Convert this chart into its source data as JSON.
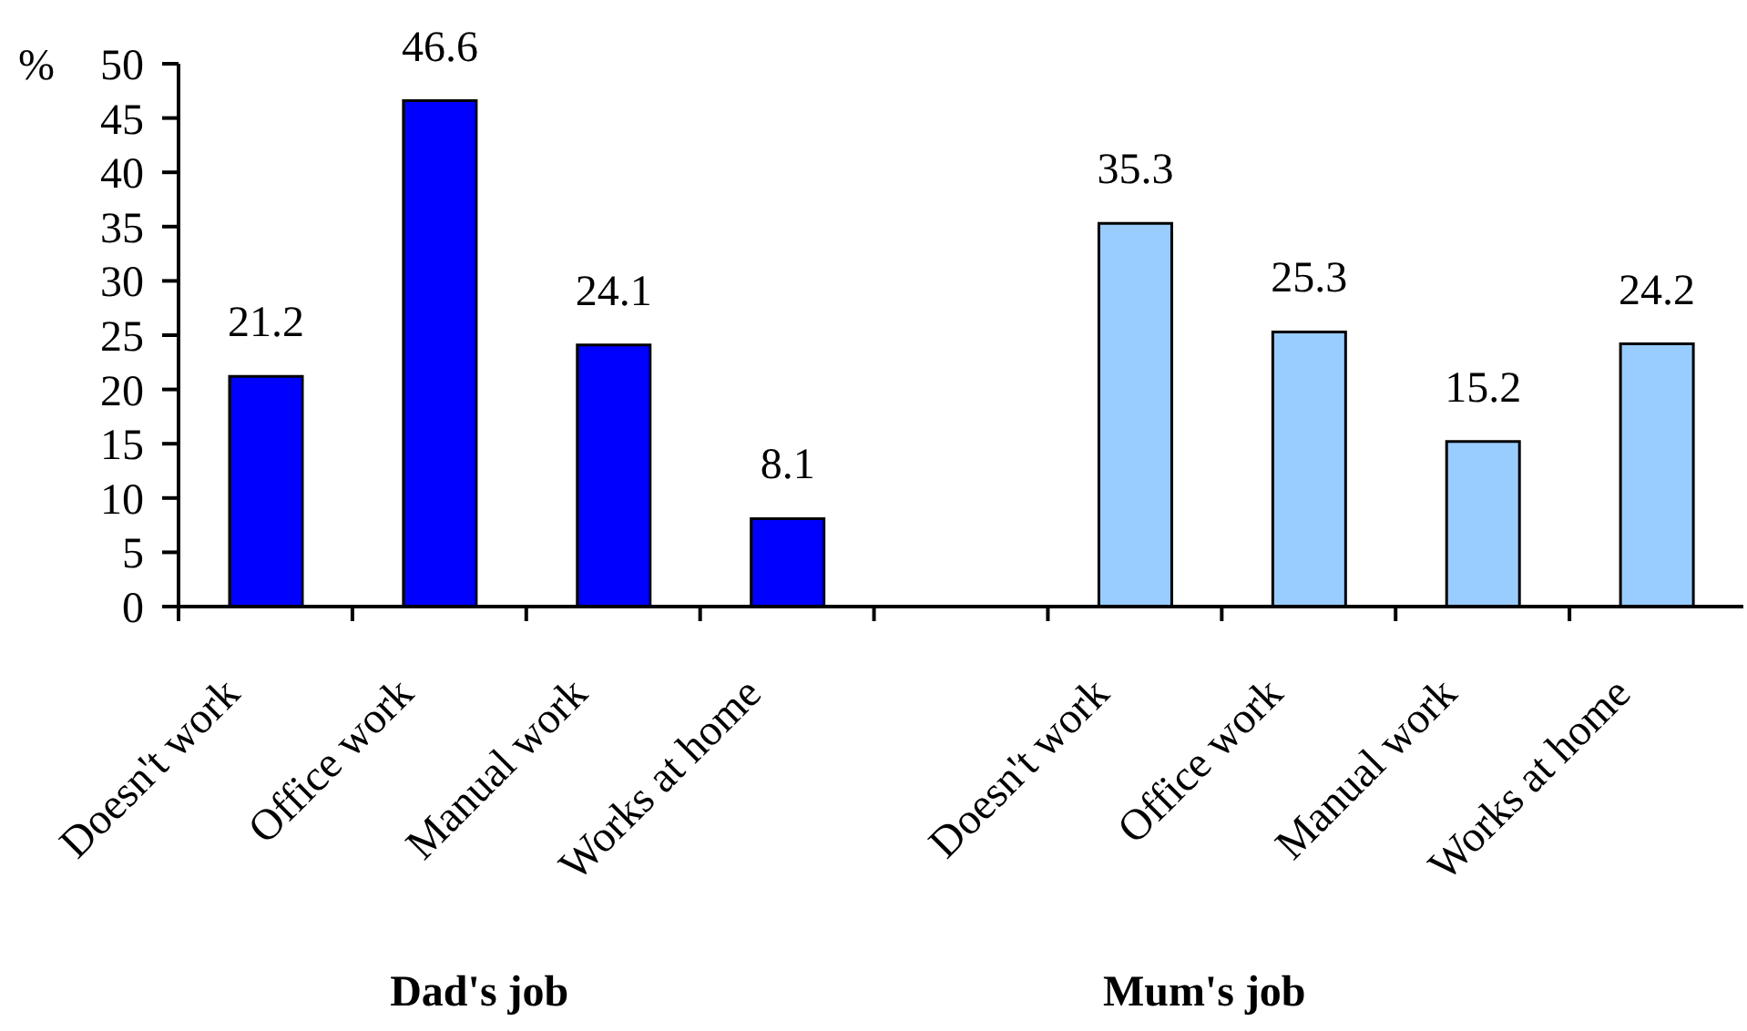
{
  "chart_data": {
    "type": "bar",
    "categories": [
      "Doesn't work",
      "Office work",
      "Manual work",
      "Works at home",
      null,
      "Doesn't work",
      "Office work",
      "Manual work",
      "Works at home"
    ],
    "values": [
      21.2,
      46.6,
      24.1,
      8.1,
      null,
      35.3,
      25.3,
      15.2,
      24.2
    ],
    "colors": [
      "#0000ff",
      "#0000ff",
      "#0000ff",
      "#0000ff",
      null,
      "#99ccff",
      "#99ccff",
      "#99ccff",
      "#99ccff"
    ],
    "ylabel": "%",
    "ylim": [
      0,
      50
    ],
    "yticks": [
      0,
      5,
      10,
      15,
      20,
      25,
      30,
      35,
      40,
      45,
      50
    ],
    "data_labels": true,
    "annotations": [
      "Dad's job",
      "Mum's job"
    ]
  }
}
